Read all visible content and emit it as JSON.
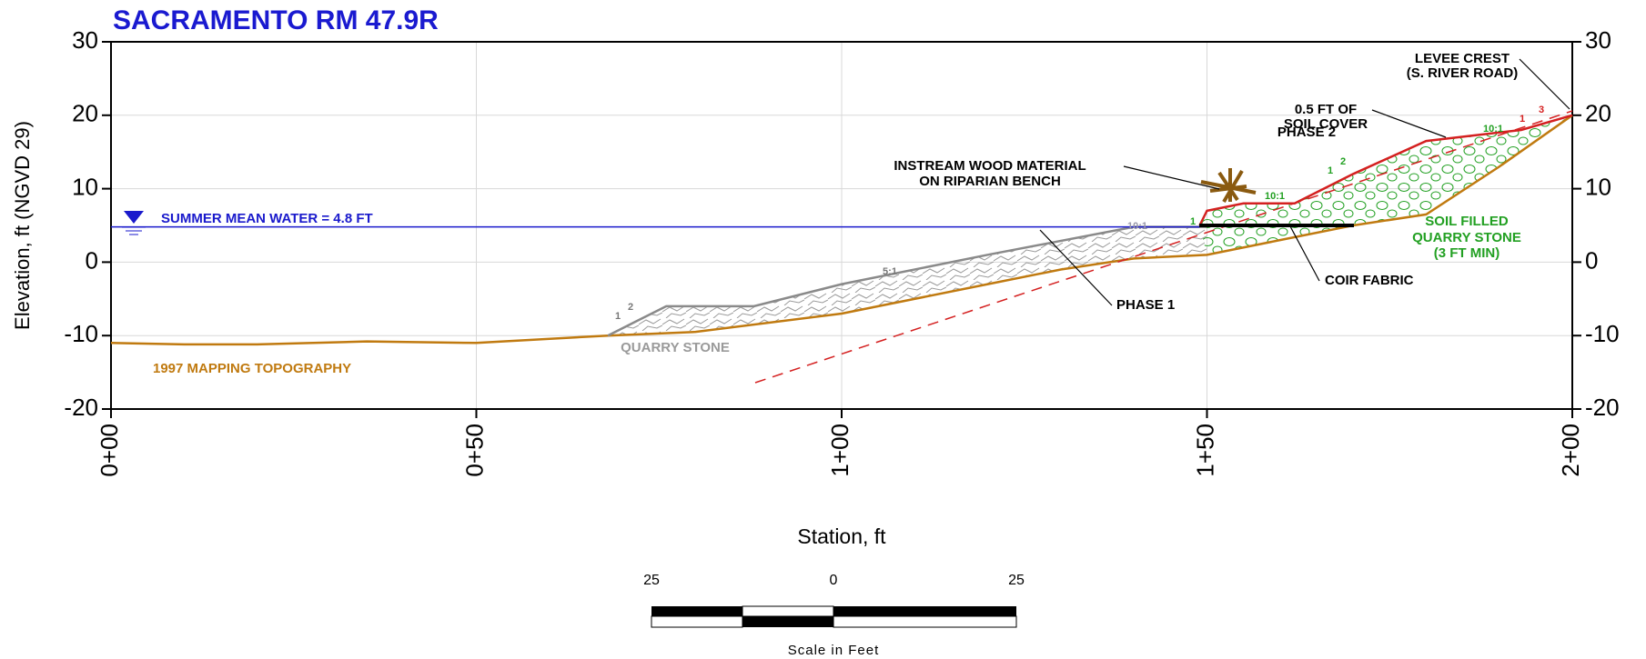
{
  "chart_data": {
    "type": "line",
    "title": "SACRAMENTO RM 47.9R",
    "x_label": "Station, ft",
    "y_label": "Elevation, ft (NGVD 29)",
    "xlim": [
      0,
      200
    ],
    "xticks": [
      {
        "value": 0,
        "label": "0+00"
      },
      {
        "value": 50,
        "label": "0+50"
      },
      {
        "value": 100,
        "label": "1+00"
      },
      {
        "value": 150,
        "label": "1+50"
      },
      {
        "value": 200,
        "label": "2+00"
      }
    ],
    "ylim": [
      -20,
      30
    ],
    "yticks": [
      -20,
      -10,
      0,
      10,
      20,
      30
    ],
    "grid": true,
    "series": [
      {
        "name": "1997 MAPPING TOPOGRAPHY",
        "color": "#c07a10",
        "x": [
          0,
          10,
          20,
          35,
          50,
          68,
          80,
          100,
          120,
          130,
          140,
          150,
          160,
          170,
          180,
          190,
          200
        ],
        "values": [
          -11,
          -11.2,
          -11.2,
          -10.8,
          -11,
          -10,
          -9.5,
          -7,
          -3,
          -1,
          0.5,
          1,
          3,
          5,
          6.5,
          13,
          20
        ]
      },
      {
        "name": "QUARRY STONE",
        "color": "#8a8a8a",
        "x": [
          68,
          72,
          76,
          88,
          100,
          120,
          140,
          150
        ],
        "values": [
          -10,
          -8,
          -6,
          -6,
          -3,
          1,
          4.8,
          4.8
        ]
      },
      {
        "name": "PHASE 2",
        "color": "#d42020",
        "x": [
          149,
          150,
          155,
          162,
          170,
          180,
          193,
          200
        ],
        "values": [
          5,
          7,
          8,
          8,
          12,
          16.5,
          18,
          20
        ]
      },
      {
        "name": "SUMMER MEAN WATER = 4.8 FT",
        "color": "#1a1acc",
        "x": [
          0,
          149
        ],
        "values": [
          4.8,
          4.8
        ]
      }
    ],
    "annotations": [
      [
        "QUARRY STONE"
      ],
      [
        "PHASE 1"
      ],
      [
        "COIR FABRIC"
      ],
      [
        "SOIL FILLED",
        "QUARRY STONE",
        "(3 FT MIN)"
      ],
      [
        "INSTREAM WOOD MATERIAL",
        "ON RIPARIAN BENCH"
      ],
      [
        "0.5 FT OF",
        "SOIL COVER"
      ],
      [
        "LEVEE CREST",
        "(S. RIVER ROAD)"
      ]
    ],
    "slope_labels": [
      "1",
      "2",
      "5:1",
      "10:1",
      "1",
      "10:1",
      "1",
      "2",
      "10:1",
      "1",
      "3"
    ],
    "scale_bar": {
      "labels": [
        "25",
        "0",
        "25"
      ],
      "caption": "Scale in Feet"
    }
  }
}
